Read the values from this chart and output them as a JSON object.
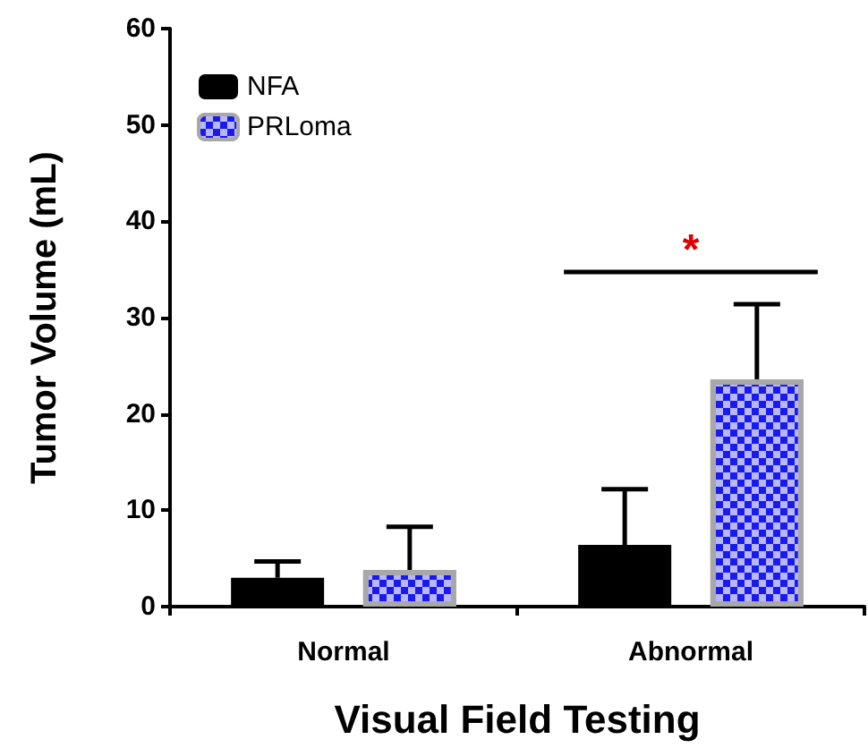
{
  "chart_data": {
    "type": "bar",
    "xlabel": "Visual Field Testing",
    "ylabel": "Tumor Volume (mL)",
    "categories": [
      "Normal",
      "Abnormal"
    ],
    "series": [
      {
        "name": "NFA",
        "color": "#000000",
        "values": [
          3.0,
          6.4
        ],
        "errors": [
          [
            3.0,
            4.7
          ],
          [
            6.4,
            12.2
          ]
        ]
      },
      {
        "name": "PRLoma",
        "color": "#1a1aee",
        "values": [
          3.8,
          23.6
        ],
        "errors": [
          [
            3.8,
            8.3
          ],
          [
            23.6,
            31.4
          ]
        ]
      }
    ],
    "ylim": [
      0,
      60
    ],
    "yticks": [
      0,
      10,
      20,
      30,
      40,
      50,
      60
    ],
    "grid": false,
    "legend": "top left",
    "annotations": [
      "*"
    ]
  }
}
